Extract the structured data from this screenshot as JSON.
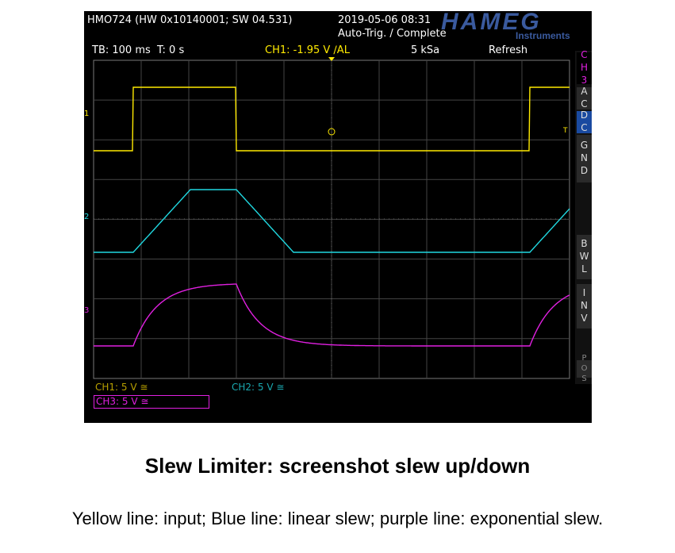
{
  "scope": {
    "header": {
      "model": "HMO724 (HW 0x10140001; SW 04.531)",
      "datetime": "2019-05-06 08:31",
      "status": "Auto-Trig. / Complete",
      "logo": "HAMEG",
      "logo_sub": "Instruments"
    },
    "status_bar": {
      "timebase": "TB: 100 ms  T: 0 s",
      "trigger": "CH1: -1.95 V ∕AL",
      "sample_rate": "5 kSa",
      "mode": "Refresh"
    },
    "side_menu": [
      "CH3",
      "AC",
      "DC",
      "GND",
      "BWL",
      "INV",
      "POS"
    ],
    "markers": [
      "1",
      "2",
      "3",
      "T"
    ],
    "channels": [
      "CH1: 5 V ≅",
      "CH2: 5 V ≅",
      "CH3: 5 V ≅"
    ]
  },
  "caption": {
    "title": "Slew Limiter: screenshot slew up/down",
    "text": "Yellow line: input; Blue line: linear slew; purple line: exponential slew."
  }
}
